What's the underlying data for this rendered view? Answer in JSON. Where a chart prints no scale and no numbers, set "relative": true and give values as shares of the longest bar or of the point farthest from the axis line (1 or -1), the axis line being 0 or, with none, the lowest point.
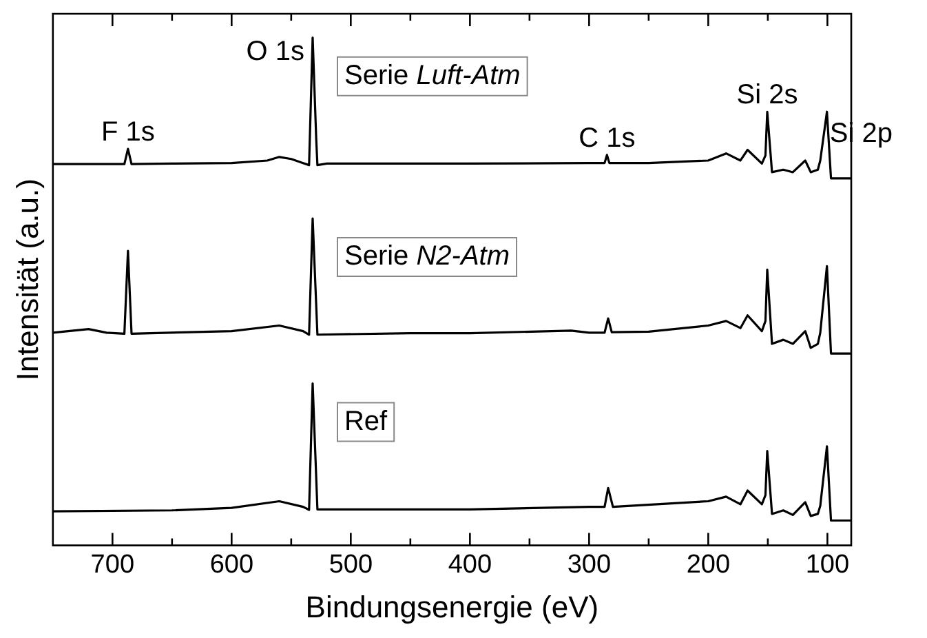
{
  "chart_data": {
    "type": "line",
    "relative": true,
    "xlabel": "Bindungsenergie (eV)",
    "ylabel": "Intensität (a.u.)",
    "xlim": [
      750,
      80
    ],
    "xticks": [
      700,
      {
        "value": 650,
        "label": null
      },
      600,
      {
        "value": 550,
        "label": null
      },
      500,
      {
        "value": 450,
        "label": null
      },
      400,
      {
        "value": 350,
        "label": null
      },
      300,
      {
        "value": 250,
        "label": null
      },
      200,
      {
        "value": 150,
        "label": null
      },
      100
    ],
    "tick_labels": "x",
    "grid": false,
    "legend": false,
    "marker": "none",
    "line_style": "solid",
    "annotations": [
      {
        "text": "O 1s",
        "x": 532,
        "y": 1.0
      },
      {
        "text": "F 1s",
        "x": 687,
        "y": 0.781
      },
      {
        "text": "C 1s",
        "x": 285,
        "y": 0.769
      },
      {
        "text": "Si 2s",
        "x": 150.5,
        "y": 0.854
      },
      {
        "text": "Si 2p",
        "x": 100.4,
        "y": 0.854
      }
    ],
    "series": [
      {
        "name": "Serie Luft-Atm",
        "color": "#000000",
        "x": [
          750,
          700,
          690,
          687,
          684,
          650,
          600,
          570,
          560,
          550,
          540,
          535,
          532,
          529,
          528,
          520,
          450,
          400,
          300,
          287,
          285,
          283,
          250,
          200,
          185,
          173,
          167,
          155,
          152,
          150.5,
          146.5,
          137,
          129,
          118.6,
          114,
          108,
          106,
          100.4,
          97,
          80
        ],
        "values": [
          0.751,
          0.751,
          0.751,
          0.781,
          0.751,
          0.752,
          0.753,
          0.758,
          0.765,
          0.761,
          0.753,
          0.749,
          1.0,
          0.8,
          0.749,
          0.752,
          0.752,
          0.752,
          0.753,
          0.753,
          0.769,
          0.753,
          0.753,
          0.758,
          0.772,
          0.758,
          0.779,
          0.752,
          0.768,
          0.854,
          0.735,
          0.74,
          0.735,
          0.758,
          0.735,
          0.74,
          0.758,
          0.854,
          0.723,
          0.723
        ]
      },
      {
        "name": "Serie N2-Atm",
        "color": "#000000",
        "x": [
          750,
          720,
          705,
          690,
          687,
          684,
          600,
          560,
          540,
          535,
          532,
          528,
          450,
          400,
          315,
          300,
          287,
          284,
          281,
          250,
          200,
          185,
          173,
          167,
          155,
          152,
          150.5,
          146.5,
          137,
          129,
          118.6,
          114,
          108,
          106,
          100.4,
          97,
          80
        ],
        "values": [
          0.419,
          0.426,
          0.419,
          0.417,
          0.58,
          0.417,
          0.422,
          0.433,
          0.422,
          0.415,
          0.644,
          0.415,
          0.418,
          0.418,
          0.423,
          0.419,
          0.419,
          0.447,
          0.42,
          0.421,
          0.433,
          0.442,
          0.428,
          0.453,
          0.422,
          0.442,
          0.543,
          0.397,
          0.405,
          0.397,
          0.422,
          0.389,
          0.397,
          0.419,
          0.55,
          0.378,
          0.378
        ]
      },
      {
        "name": "Ref",
        "color": "#000000",
        "x": [
          750,
          650,
          600,
          560,
          540,
          535,
          532,
          528,
          400,
          300,
          287,
          284,
          280,
          200,
          185,
          173,
          167,
          155,
          152,
          150.5,
          146.5,
          137,
          129,
          118.6,
          114,
          108,
          106,
          100.4,
          97,
          80
        ],
        "values": [
          0.067,
          0.069,
          0.074,
          0.087,
          0.076,
          0.07,
          0.319,
          0.071,
          0.071,
          0.076,
          0.076,
          0.113,
          0.076,
          0.087,
          0.096,
          0.081,
          0.108,
          0.081,
          0.099,
          0.186,
          0.062,
          0.069,
          0.06,
          0.085,
          0.058,
          0.062,
          0.078,
          0.195,
          0.049,
          0.049
        ]
      }
    ]
  }
}
